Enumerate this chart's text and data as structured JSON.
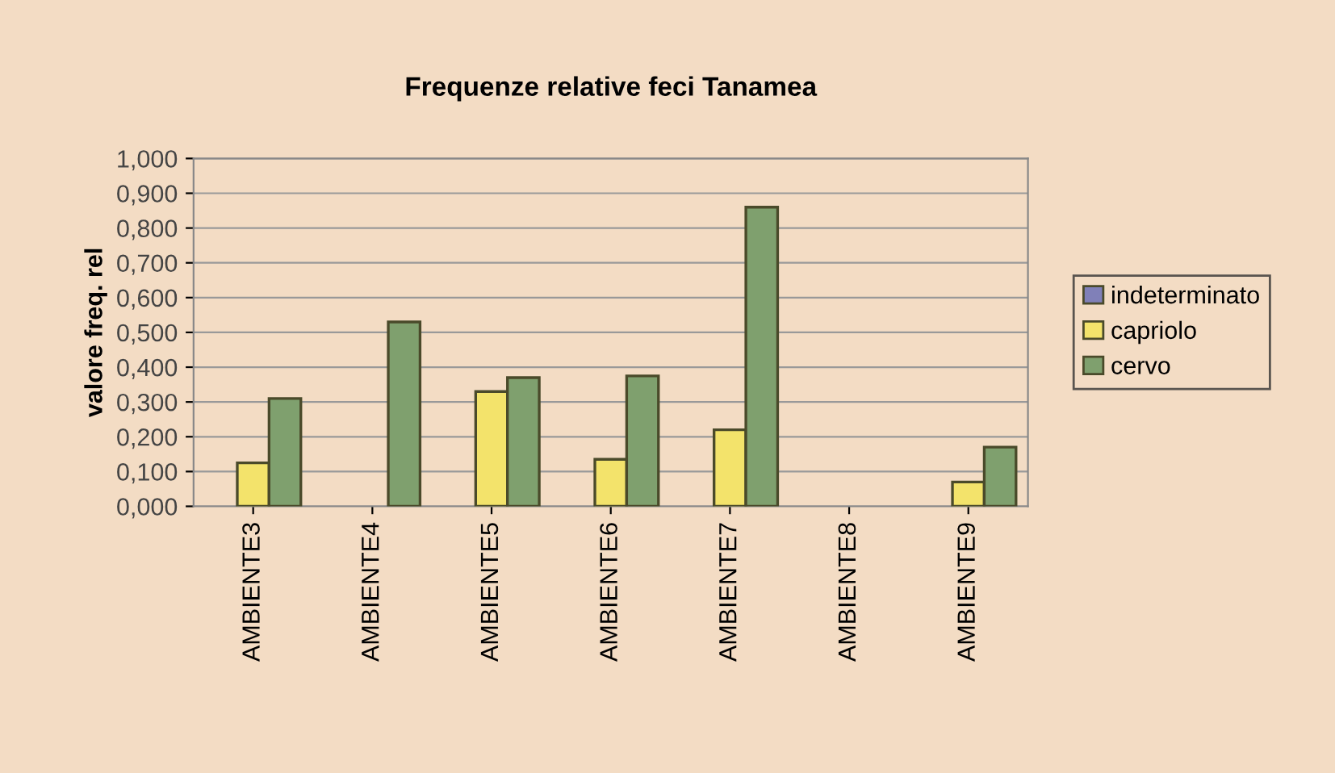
{
  "chart_data": {
    "type": "bar",
    "title": "Frequenze relative feci Tanamea",
    "ylabel": "valore freq. rel",
    "categories": [
      "AMBIENTE3",
      "AMBIENTE4",
      "AMBIENTE5",
      "AMBIENTE6",
      "AMBIENTE7",
      "AMBIENTE8",
      "AMBIENTE9"
    ],
    "series": [
      {
        "name": "indeterminato",
        "color": "#8080b8",
        "values": [
          null,
          null,
          null,
          null,
          null,
          null,
          null
        ]
      },
      {
        "name": "capriolo",
        "color": "#f3e36b",
        "values": [
          0.125,
          null,
          0.33,
          0.135,
          0.22,
          null,
          0.07
        ]
      },
      {
        "name": "cervo",
        "color": "#7fa06e",
        "values": [
          0.31,
          0.53,
          0.37,
          0.375,
          0.86,
          null,
          0.17
        ]
      }
    ],
    "ylim": [
      0,
      1
    ],
    "yticks": [
      {
        "value": 0,
        "label": "0,000"
      },
      {
        "value": 0.1,
        "label": "0,100"
      },
      {
        "value": 0.2,
        "label": "0,200"
      },
      {
        "value": 0.3,
        "label": "0,300"
      },
      {
        "value": 0.4,
        "label": "0,400"
      },
      {
        "value": 0.5,
        "label": "0,500"
      },
      {
        "value": 0.6,
        "label": "0,600"
      },
      {
        "value": 0.7,
        "label": "0,700"
      },
      {
        "value": 0.8,
        "label": "0,800"
      },
      {
        "value": 0.9,
        "label": "0,900"
      },
      {
        "value": 1,
        "label": "1,000"
      }
    ],
    "grid": "y",
    "legend": "right"
  }
}
